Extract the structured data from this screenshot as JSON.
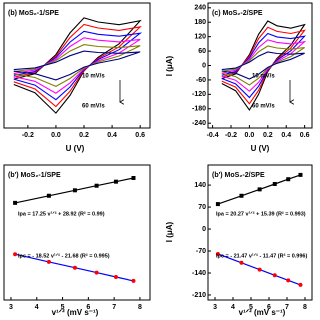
{
  "chart_data": [
    {
      "type": "line",
      "title": "(b) MoS₂-1/SPE",
      "xlabel": "U (V)",
      "annotations": [
        "10 mV/s",
        "60 mV/s"
      ],
      "x": [
        -0.3,
        -0.15,
        0,
        0.1,
        0.2,
        0.3,
        0.45,
        0.6,
        0.45,
        0.3,
        0.2,
        0.1,
        0,
        -0.15,
        -0.3
      ],
      "xlim": [
        -0.37,
        0.67
      ],
      "xticks": [
        -0.2,
        {
          "value": 0,
          "label": "0.0"
        },
        0.2,
        0.4,
        0.6
      ],
      "ylim": [
        -230,
        230
      ],
      "series": [
        {
          "color": "#000000",
          "values": [
            -50,
            -30,
            40,
            120,
            175,
            160,
            150,
            165,
            80,
            30,
            -20,
            -110,
            -175,
            -100,
            -70
          ]
        },
        {
          "color": "#ff0000",
          "values": [
            -43,
            -26,
            34,
            103,
            151,
            138,
            129,
            142,
            69,
            26,
            -17,
            -95,
            -151,
            -86,
            -60
          ]
        },
        {
          "color": "#0000ff",
          "values": [
            -36,
            -22,
            29,
            86,
            126,
            115,
            108,
            119,
            58,
            22,
            -14,
            -79,
            -126,
            -72,
            -50
          ]
        },
        {
          "color": "#ff00ff",
          "values": [
            -29,
            -17,
            23,
            70,
            102,
            93,
            87,
            96,
            46,
            17,
            -12,
            -64,
            -102,
            -58,
            -41
          ]
        },
        {
          "color": "#808000",
          "values": [
            -22,
            -13,
            18,
            53,
            77,
            70,
            66,
            73,
            35,
            13,
            -9,
            -48,
            -77,
            -44,
            -31
          ]
        },
        {
          "color": "#000080",
          "values": [
            -15,
            -9,
            12,
            36,
            53,
            48,
            45,
            50,
            24,
            9,
            -6,
            -33,
            -53,
            -30,
            -21
          ]
        }
      ]
    },
    {
      "type": "line",
      "title": "(c) MoS₂-2/SPE",
      "xlabel": "U (V)",
      "ylabel": "I (μA)",
      "annotations": [
        "10 mV/s",
        "60 mV/s"
      ],
      "x": [
        -0.3,
        -0.15,
        0,
        0.1,
        0.2,
        0.3,
        0.45,
        0.6,
        0.45,
        0.3,
        0.2,
        0.1,
        0,
        -0.15,
        -0.3
      ],
      "xlim": [
        -0.45,
        0.68
      ],
      "xticks": [
        -0.4,
        -0.2,
        {
          "value": 0,
          "label": "0.0"
        },
        0.2,
        0.4,
        0.6
      ],
      "ylim": [
        -260,
        260
      ],
      "yticks": [
        -240,
        -180,
        -120,
        -60,
        0,
        60,
        120,
        180,
        240
      ],
      "series": [
        {
          "color": "#000000",
          "values": [
            -55,
            -35,
            45,
            130,
            185,
            165,
            155,
            170,
            85,
            30,
            -25,
            -120,
            -185,
            -105,
            -75
          ]
        },
        {
          "color": "#ff0000",
          "values": [
            -47,
            -30,
            39,
            112,
            159,
            142,
            133,
            146,
            73,
            26,
            -21,
            -103,
            -159,
            -90,
            -65
          ]
        },
        {
          "color": "#0000ff",
          "values": [
            -40,
            -25,
            32,
            94,
            133,
            119,
            112,
            122,
            61,
            22,
            -18,
            -86,
            -133,
            -76,
            -54
          ]
        },
        {
          "color": "#ff00ff",
          "values": [
            -32,
            -20,
            26,
            75,
            107,
            96,
            90,
            99,
            49,
            17,
            -15,
            -70,
            -107,
            -61,
            -44
          ]
        },
        {
          "color": "#808000",
          "values": [
            -24,
            -15,
            20,
            57,
            81,
            73,
            68,
            75,
            37,
            13,
            -11,
            -53,
            -81,
            -46,
            -33
          ]
        },
        {
          "color": "#000080",
          "values": [
            -17,
            -11,
            14,
            39,
            56,
            50,
            47,
            51,
            26,
            9,
            -8,
            -36,
            -56,
            -32,
            -23
          ]
        }
      ]
    },
    {
      "type": "scatter",
      "title": "(b') MoS₂-1/SPE",
      "xlabel": "v¹ᐟ² (mV s⁻¹)",
      "x": [
        3.16,
        4.47,
        5.48,
        6.32,
        7.07,
        7.75
      ],
      "xlim": [
        2.73,
        8.39
      ],
      "xticks": [
        3,
        4,
        5,
        6,
        7,
        8
      ],
      "ylim": [
        -226,
        204
      ],
      "series": [
        {
          "name": "Ipa = 17.25 v¹ᐟ² + 28.92 (R² = 0.99)",
          "color": "#000000",
          "marker": "square",
          "line_color": "#000000",
          "values": [
            83.4,
            106.0,
            123.4,
            138.0,
            150.9,
            162.6
          ]
        },
        {
          "name": "Ipc = - 18.52 v¹ᐟ² - 21.68 (R² = 0.995)",
          "color": "#ff0000",
          "marker": "circle",
          "line_color": "#0000ff",
          "values": [
            -80.2,
            -104.5,
            -123.1,
            -138.7,
            -152.6,
            -165.2
          ]
        }
      ]
    },
    {
      "type": "scatter",
      "title": "(b') MoS₂-2/SPE",
      "xlabel": "v¹ᐟ² (mV s⁻¹)",
      "ylabel": "I (μA)",
      "x": [
        3.16,
        4.47,
        5.48,
        6.32,
        7.07,
        7.75
      ],
      "xlim": [
        2.61,
        8.39
      ],
      "xticks": [
        3,
        4,
        5,
        6,
        7,
        8
      ],
      "ylim": [
        -226,
        204
      ],
      "yticks": [
        -210,
        -140,
        -70,
        0,
        70,
        140
      ],
      "series": [
        {
          "name": "Ipa = 20.27 v¹ᐟ² + 15.39 (R² = 0.993)",
          "color": "#000000",
          "marker": "square",
          "line_color": "#000000",
          "values": [
            79.5,
            106.0,
            126.4,
            143.5,
            158.7,
            172.5
          ]
        },
        {
          "name": "Ipc = - 21.47 v¹ᐟ² - 11.47 (R² = 0.996)",
          "color": "#ff0000",
          "marker": "circle",
          "line_color": "#0000ff",
          "values": [
            -79.3,
            -107.5,
            -129.1,
            -147.2,
            -163.3,
            -177.8
          ]
        }
      ]
    }
  ]
}
